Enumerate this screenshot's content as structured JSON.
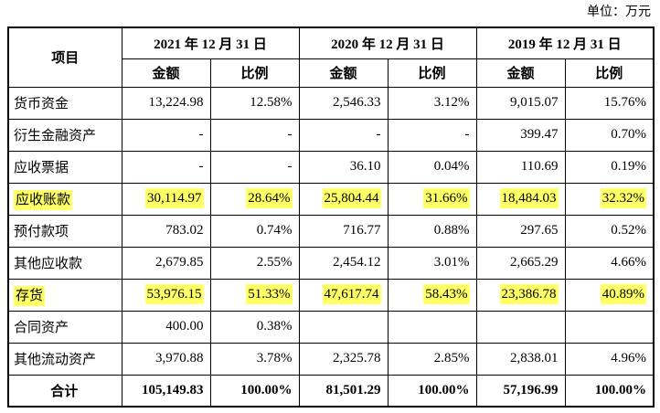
{
  "unit_label": "单位：万元",
  "table": {
    "item_header": "项目",
    "col_groups": [
      {
        "date": "2021 年 12 月 31 日"
      },
      {
        "date": "2020 年 12 月 31 日"
      },
      {
        "date": "2019 年 12 月 31 日"
      }
    ],
    "sub_headers": {
      "amount": "金额",
      "ratio": "比例"
    },
    "highlight_color": "#ffff66",
    "rows": [
      {
        "label": "货币资金",
        "highlight": false,
        "total": false,
        "cells": [
          "13,224.98",
          "12.58%",
          "2,546.33",
          "3.12%",
          "9,015.07",
          "15.76%"
        ]
      },
      {
        "label": "衍生金融资产",
        "highlight": false,
        "total": false,
        "cells": [
          "-",
          "-",
          "-",
          "-",
          "399.47",
          "0.70%"
        ]
      },
      {
        "label": "应收票据",
        "highlight": false,
        "total": false,
        "cells": [
          "-",
          "-",
          "36.10",
          "0.04%",
          "110.69",
          "0.19%"
        ]
      },
      {
        "label": "应收账款",
        "highlight": true,
        "total": false,
        "cells": [
          "30,114.97",
          "28.64%",
          "25,804.44",
          "31.66%",
          "18,484.03",
          "32.32%"
        ]
      },
      {
        "label": "预付款项",
        "highlight": false,
        "total": false,
        "cells": [
          "783.02",
          "0.74%",
          "716.77",
          "0.88%",
          "297.65",
          "0.52%"
        ]
      },
      {
        "label": "其他应收款",
        "highlight": false,
        "total": false,
        "cells": [
          "2,679.85",
          "2.55%",
          "2,454.12",
          "3.01%",
          "2,665.29",
          "4.66%"
        ]
      },
      {
        "label": "存货",
        "highlight": true,
        "total": false,
        "cells": [
          "53,976.15",
          "51.33%",
          "47,617.74",
          "58.43%",
          "23,386.78",
          "40.89%"
        ]
      },
      {
        "label": "合同资产",
        "highlight": false,
        "total": false,
        "cells": [
          "400.00",
          "0.38%",
          "",
          "",
          "",
          ""
        ]
      },
      {
        "label": "其他流动资产",
        "highlight": false,
        "total": false,
        "cells": [
          "3,970.88",
          "3.78%",
          "2,325.78",
          "2.85%",
          "2,838.01",
          "4.96%"
        ]
      },
      {
        "label": "合计",
        "highlight": false,
        "total": true,
        "cells": [
          "105,149.83",
          "100.00%",
          "81,501.29",
          "100.00%",
          "57,196.99",
          "100.00%"
        ]
      }
    ]
  }
}
